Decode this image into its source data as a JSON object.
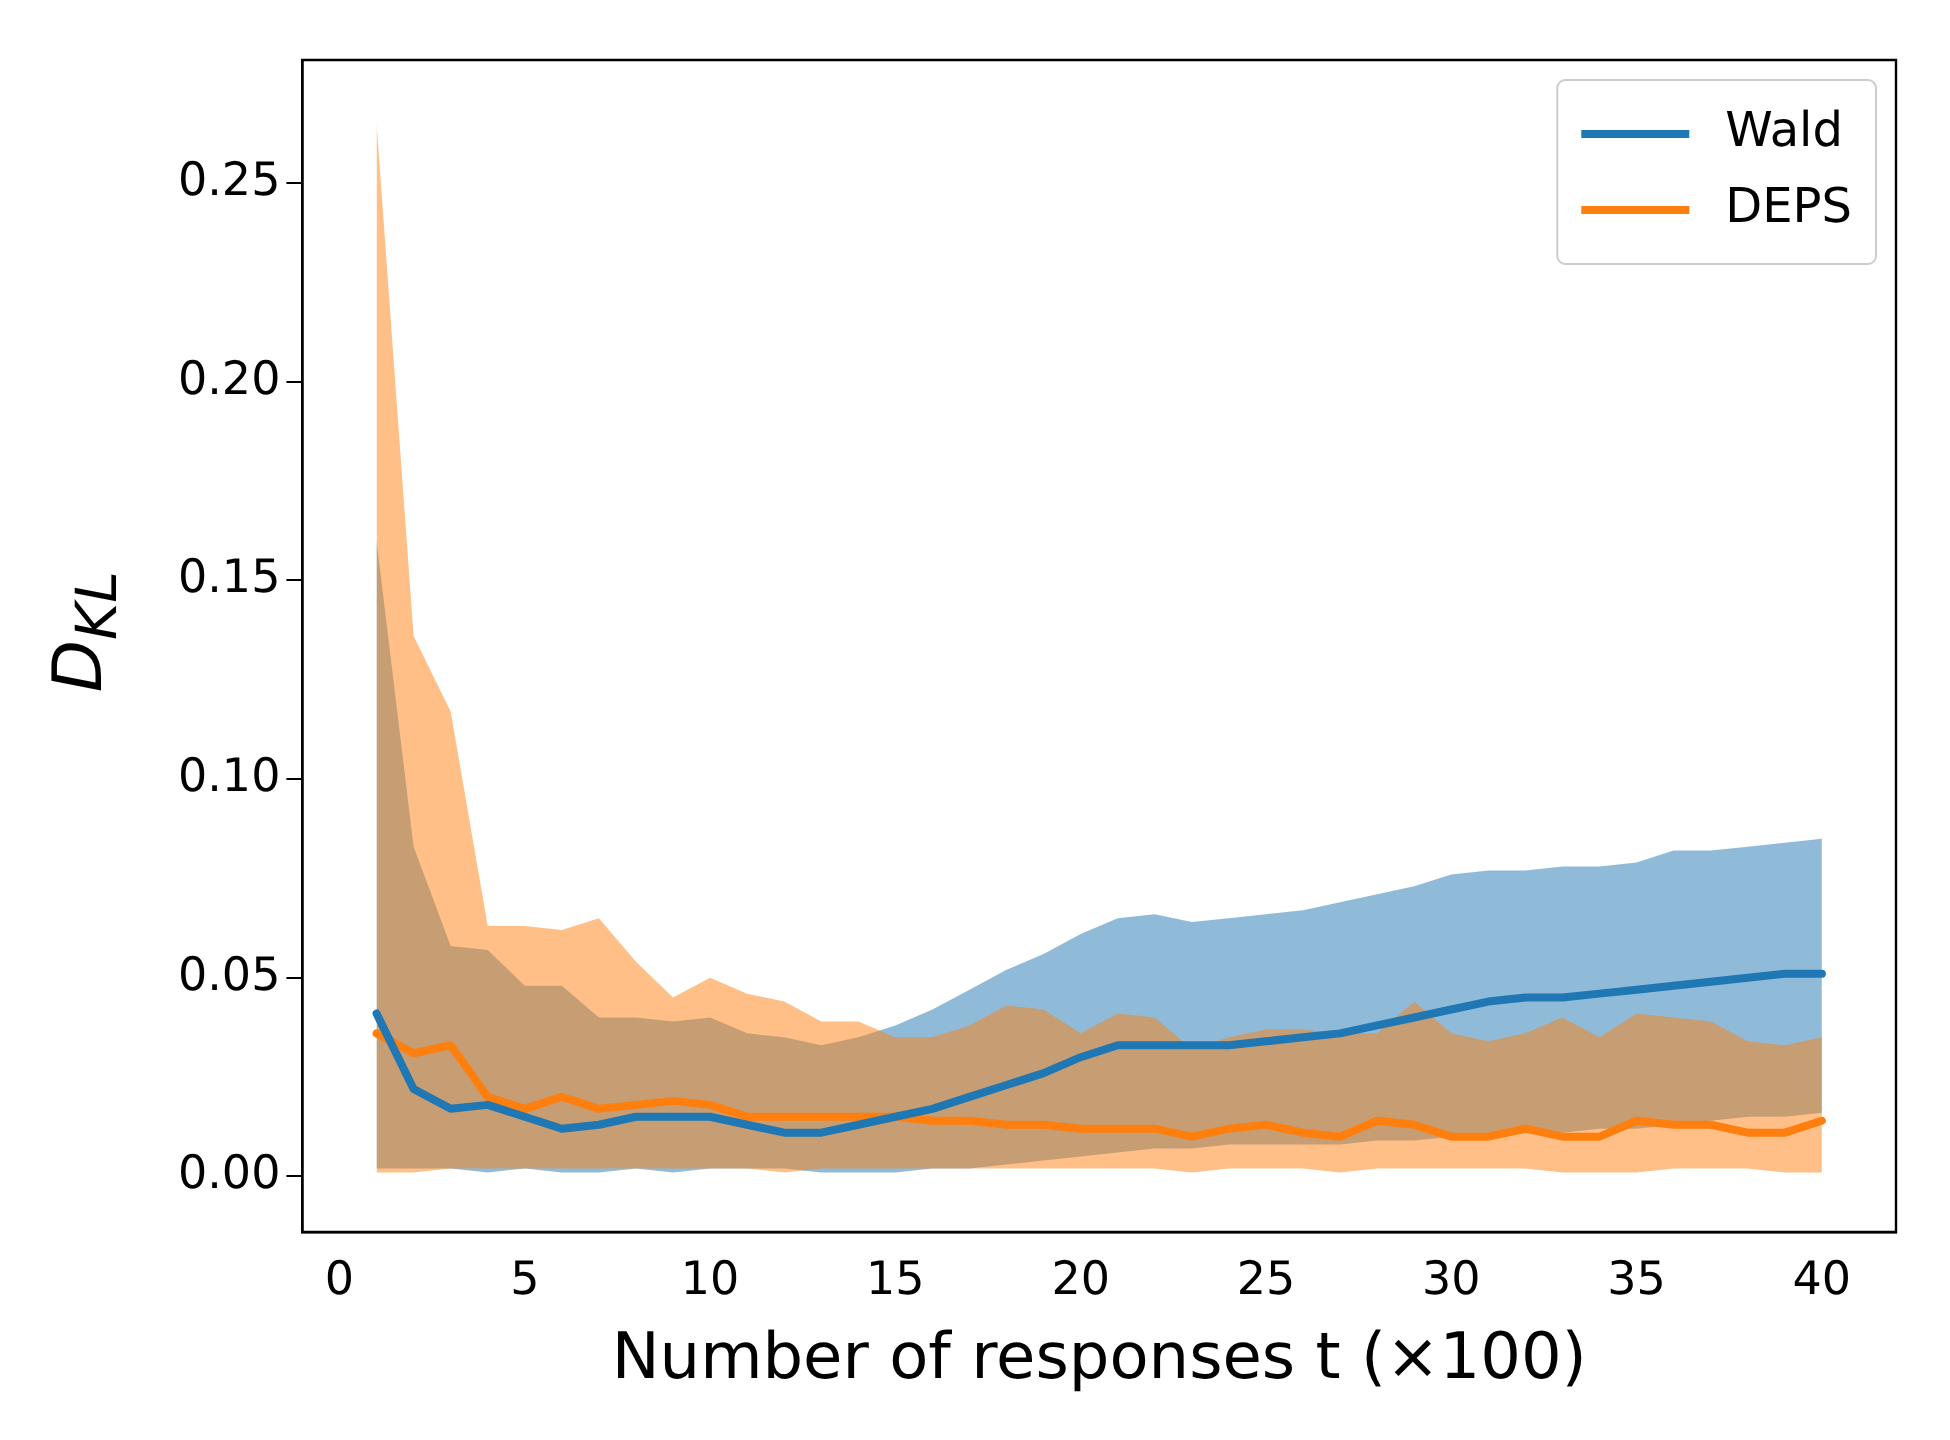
{
  "chart_data": {
    "type": "line",
    "xlabel": "Number of responses t (×100)",
    "ylabel": "D$_{KL}$",
    "x": [
      1,
      2,
      3,
      4,
      5,
      6,
      7,
      8,
      9,
      10,
      11,
      12,
      13,
      14,
      15,
      16,
      17,
      18,
      19,
      20,
      21,
      22,
      23,
      24,
      25,
      26,
      27,
      28,
      29,
      30,
      31,
      32,
      33,
      34,
      35,
      36,
      37,
      38,
      39,
      40
    ],
    "xlim": [
      -1,
      42
    ],
    "xticks": [
      0,
      5,
      10,
      15,
      20,
      25,
      30,
      35,
      40
    ],
    "ylim": [
      -0.014,
      0.281
    ],
    "yticks": [
      {
        "value": 0,
        "label": "0.00"
      },
      {
        "value": 0.05,
        "label": "0.05"
      },
      {
        "value": 0.1,
        "label": "0.10"
      },
      {
        "value": 0.15,
        "label": "0.15"
      },
      {
        "value": 0.2,
        "label": "0.20"
      },
      {
        "value": 0.25,
        "label": "0.25"
      }
    ],
    "grid": false,
    "legend": "top right",
    "marker": "none",
    "line_style": "solid",
    "series": [
      {
        "name": "Wald",
        "color": "#1f77b4",
        "values": [
          0.041,
          0.022,
          0.017,
          0.018,
          0.015,
          0.012,
          0.013,
          0.015,
          0.015,
          0.015,
          0.013,
          0.011,
          0.011,
          0.013,
          0.015,
          0.017,
          0.02,
          0.023,
          0.026,
          0.03,
          0.033,
          0.033,
          0.033,
          0.033,
          0.034,
          0.035,
          0.036,
          0.038,
          0.04,
          0.042,
          0.044,
          0.045,
          0.045,
          0.046,
          0.047,
          0.048,
          0.049,
          0.05,
          0.051,
          0.051
        ],
        "lower": [
          0.002,
          0.002,
          0.002,
          0.001,
          0.002,
          0.001,
          0.001,
          0.002,
          0.001,
          0.002,
          0.002,
          0.002,
          0.001,
          0.001,
          0.001,
          0.002,
          0.002,
          0.003,
          0.004,
          0.005,
          0.006,
          0.007,
          0.007,
          0.008,
          0.008,
          0.008,
          0.008,
          0.009,
          0.009,
          0.01,
          0.01,
          0.011,
          0.011,
          0.012,
          0.012,
          0.013,
          0.014,
          0.015,
          0.015,
          0.016
        ],
        "upper": [
          0.16,
          0.083,
          0.058,
          0.057,
          0.048,
          0.048,
          0.04,
          0.04,
          0.039,
          0.04,
          0.036,
          0.035,
          0.033,
          0.035,
          0.038,
          0.042,
          0.047,
          0.052,
          0.056,
          0.061,
          0.065,
          0.066,
          0.064,
          0.065,
          0.066,
          0.067,
          0.069,
          0.071,
          0.073,
          0.076,
          0.077,
          0.077,
          0.078,
          0.078,
          0.079,
          0.082,
          0.082,
          0.083,
          0.084,
          0.085
        ]
      },
      {
        "name": "DEPS",
        "color": "#ff7f0e",
        "values": [
          0.036,
          0.031,
          0.033,
          0.02,
          0.017,
          0.02,
          0.017,
          0.018,
          0.019,
          0.018,
          0.015,
          0.015,
          0.015,
          0.015,
          0.015,
          0.014,
          0.014,
          0.013,
          0.013,
          0.012,
          0.012,
          0.012,
          0.01,
          0.012,
          0.013,
          0.011,
          0.01,
          0.014,
          0.013,
          0.01,
          0.01,
          0.012,
          0.01,
          0.01,
          0.014,
          0.013,
          0.013,
          0.011,
          0.011,
          0.014
        ],
        "lower": [
          0.001,
          0.001,
          0.002,
          0.002,
          0.002,
          0.002,
          0.002,
          0.002,
          0.002,
          0.002,
          0.002,
          0.001,
          0.002,
          0.002,
          0.002,
          0.002,
          0.002,
          0.002,
          0.002,
          0.002,
          0.002,
          0.002,
          0.001,
          0.002,
          0.002,
          0.002,
          0.001,
          0.002,
          0.002,
          0.002,
          0.002,
          0.002,
          0.001,
          0.001,
          0.001,
          0.002,
          0.002,
          0.002,
          0.001,
          0.001
        ],
        "upper": [
          0.265,
          0.136,
          0.117,
          0.063,
          0.063,
          0.062,
          0.065,
          0.054,
          0.045,
          0.05,
          0.046,
          0.044,
          0.039,
          0.039,
          0.035,
          0.035,
          0.038,
          0.043,
          0.042,
          0.036,
          0.041,
          0.04,
          0.032,
          0.035,
          0.037,
          0.037,
          0.036,
          0.036,
          0.044,
          0.036,
          0.034,
          0.036,
          0.04,
          0.035,
          0.041,
          0.04,
          0.039,
          0.034,
          0.033,
          0.035
        ]
      }
    ]
  }
}
